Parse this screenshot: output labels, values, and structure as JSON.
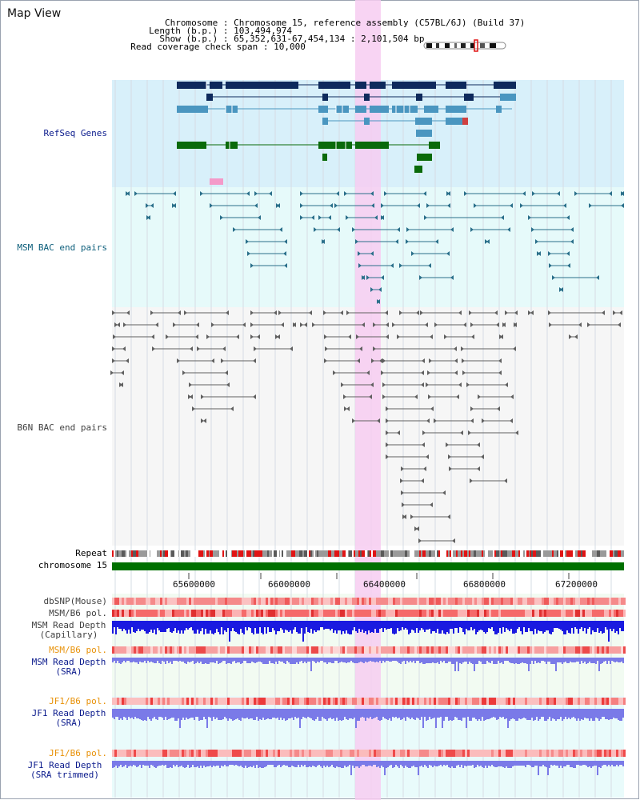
{
  "title": "Map View",
  "info": {
    "chromosome_key": "Chromosome",
    "chromosome_value": "Chromosome 15, reference assembly (C57BL/6J) (Build 37)",
    "length_key": "Length (b.p.)",
    "length_value": "103,494,974",
    "show_key": "Show (b.p.)",
    "show_value": "65,352,631-67,454,134 : 2,101,504 bp",
    "coverage_key": "Read coverage check span",
    "coverage_value": "10,000"
  },
  "tracks": {
    "refseq": "RefSeq Genes",
    "msm_bac": "MSM BAC end pairs",
    "b6n_bac": "B6N BAC end pairs",
    "repeat": "Repeat",
    "chromosome": "chromosome 15",
    "dbsnp": "dbSNP(Mouse)",
    "msm_b6_pol_1": "MSM/B6 pol.",
    "msm_depth_cap_1": "MSM Read Depth",
    "msm_depth_cap_2": "(Capillary)",
    "msm_b6_pol_2": "MSM/B6 pol.",
    "msm_depth_sra_1": "MSM Read Depth",
    "msm_depth_sra_2": "(SRA)",
    "jf1_b6_pol_1": "JF1/B6 pol.",
    "jf1_depth_sra_1": "JF1 Read Depth",
    "jf1_depth_sra_2": "(SRA)",
    "jf1_b6_pol_2": "JF1/B6 pol.",
    "jf1_depth_trim_1": "JF1 Read Depth",
    "jf1_depth_trim_2": "(SRA trimmed)"
  },
  "axis": {
    "ticks": [
      "65600000",
      "66000000",
      "66400000",
      "66800000",
      "67200000"
    ]
  },
  "colors": {
    "refseq_bg": "#d8f0fa",
    "msm_bg": "#e6fafa",
    "b6n_bg": "#f6f6f6",
    "highlight": "#f7cdf1",
    "chromosome_bar": "#007000",
    "label_navy": "#0a1a8c",
    "label_teal": "#0b5d7a",
    "label_gray": "#404040",
    "label_orange": "#e8920a",
    "gene_dark": "#0e2a5c",
    "gene_light": "#4a96c0",
    "gene_green": "#0a6a0a",
    "bac_teal": "#2a6f8a",
    "bac_gray": "#606060",
    "depth_blue": "#1a1ae0",
    "depth_lavender": "#7a7ae8"
  }
}
